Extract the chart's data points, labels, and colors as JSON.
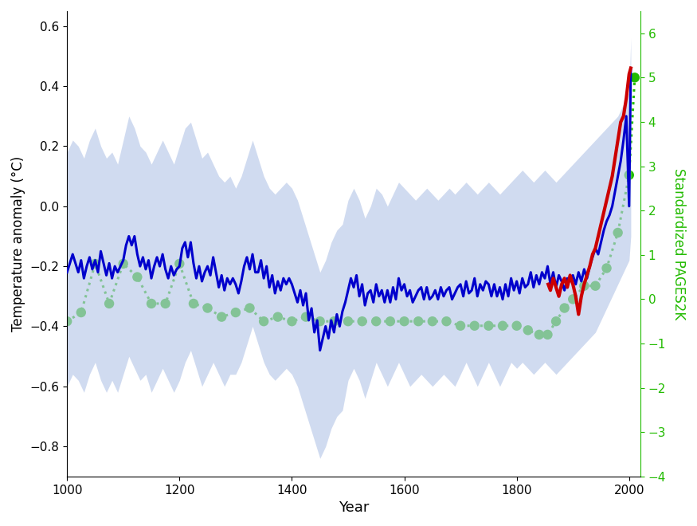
{
  "xlabel": "Year",
  "ylabel_left": "Temperature anomaly (°C)",
  "ylabel_right": "Standardized PAGES2K",
  "xlim": [
    1000,
    2020
  ],
  "ylim_left": [
    -0.9,
    0.65
  ],
  "ylim_right": [
    -4.0,
    6.5
  ],
  "yticks_left": [
    -0.8,
    -0.6,
    -0.4,
    -0.2,
    0.0,
    0.2,
    0.4,
    0.6
  ],
  "yticks_right": [
    -4,
    -3,
    -2,
    -1,
    0,
    1,
    2,
    3,
    4,
    5,
    6
  ],
  "xticks": [
    1000,
    1200,
    1400,
    1600,
    1800,
    2000
  ],
  "blue_color": "#0000cc",
  "red_color": "#cc0000",
  "green_color": "#22bb00",
  "shade_color": "#b8c8e8",
  "shade_alpha": 0.65,
  "right_axis_color": "#22bb00",
  "blue_line_x": [
    1000,
    1005,
    1010,
    1015,
    1020,
    1025,
    1030,
    1035,
    1040,
    1045,
    1050,
    1055,
    1060,
    1065,
    1070,
    1075,
    1080,
    1085,
    1090,
    1095,
    1100,
    1105,
    1110,
    1115,
    1120,
    1125,
    1130,
    1135,
    1140,
    1145,
    1150,
    1155,
    1160,
    1165,
    1170,
    1175,
    1180,
    1185,
    1190,
    1195,
    1200,
    1205,
    1210,
    1215,
    1220,
    1225,
    1230,
    1235,
    1240,
    1245,
    1250,
    1255,
    1260,
    1265,
    1270,
    1275,
    1280,
    1285,
    1290,
    1295,
    1300,
    1305,
    1310,
    1315,
    1320,
    1325,
    1330,
    1335,
    1340,
    1345,
    1350,
    1355,
    1360,
    1365,
    1370,
    1375,
    1380,
    1385,
    1390,
    1395,
    1400,
    1405,
    1410,
    1415,
    1420,
    1425,
    1430,
    1435,
    1440,
    1445,
    1450,
    1455,
    1460,
    1465,
    1470,
    1475,
    1480,
    1485,
    1490,
    1495,
    1500,
    1505,
    1510,
    1515,
    1520,
    1525,
    1530,
    1535,
    1540,
    1545,
    1550,
    1555,
    1560,
    1565,
    1570,
    1575,
    1580,
    1585,
    1590,
    1595,
    1600,
    1605,
    1610,
    1615,
    1620,
    1625,
    1630,
    1635,
    1640,
    1645,
    1650,
    1655,
    1660,
    1665,
    1670,
    1675,
    1680,
    1685,
    1690,
    1695,
    1700,
    1705,
    1710,
    1715,
    1720,
    1725,
    1730,
    1735,
    1740,
    1745,
    1750,
    1755,
    1760,
    1765,
    1770,
    1775,
    1780,
    1785,
    1790,
    1795,
    1800,
    1805,
    1810,
    1815,
    1820,
    1825,
    1830,
    1835,
    1840,
    1845,
    1850,
    1855,
    1860,
    1865,
    1870,
    1875,
    1880,
    1885,
    1890,
    1895,
    1900,
    1905,
    1910,
    1915,
    1920,
    1925,
    1930,
    1935,
    1940,
    1945,
    1950,
    1955,
    1960,
    1965,
    1970,
    1975,
    1980,
    1985,
    1990,
    1995,
    2000,
    2003
  ],
  "blue_line_y": [
    -0.22,
    -0.19,
    -0.16,
    -0.19,
    -0.22,
    -0.18,
    -0.24,
    -0.2,
    -0.17,
    -0.21,
    -0.18,
    -0.22,
    -0.15,
    -0.19,
    -0.23,
    -0.19,
    -0.24,
    -0.2,
    -0.22,
    -0.2,
    -0.18,
    -0.13,
    -0.1,
    -0.13,
    -0.1,
    -0.16,
    -0.2,
    -0.17,
    -0.21,
    -0.18,
    -0.24,
    -0.2,
    -0.17,
    -0.2,
    -0.16,
    -0.21,
    -0.24,
    -0.2,
    -0.23,
    -0.21,
    -0.2,
    -0.14,
    -0.12,
    -0.17,
    -0.12,
    -0.19,
    -0.24,
    -0.2,
    -0.25,
    -0.22,
    -0.2,
    -0.23,
    -0.17,
    -0.22,
    -0.27,
    -0.23,
    -0.28,
    -0.24,
    -0.26,
    -0.24,
    -0.26,
    -0.29,
    -0.25,
    -0.2,
    -0.17,
    -0.21,
    -0.16,
    -0.22,
    -0.22,
    -0.18,
    -0.24,
    -0.2,
    -0.27,
    -0.23,
    -0.29,
    -0.25,
    -0.28,
    -0.24,
    -0.26,
    -0.24,
    -0.26,
    -0.29,
    -0.32,
    -0.28,
    -0.33,
    -0.29,
    -0.38,
    -0.34,
    -0.42,
    -0.38,
    -0.48,
    -0.44,
    -0.4,
    -0.44,
    -0.38,
    -0.42,
    -0.36,
    -0.4,
    -0.35,
    -0.32,
    -0.28,
    -0.24,
    -0.27,
    -0.23,
    -0.3,
    -0.26,
    -0.33,
    -0.29,
    -0.28,
    -0.32,
    -0.26,
    -0.3,
    -0.28,
    -0.32,
    -0.28,
    -0.32,
    -0.27,
    -0.31,
    -0.24,
    -0.28,
    -0.26,
    -0.3,
    -0.28,
    -0.32,
    -0.3,
    -0.28,
    -0.27,
    -0.31,
    -0.27,
    -0.31,
    -0.3,
    -0.28,
    -0.31,
    -0.27,
    -0.3,
    -0.28,
    -0.27,
    -0.31,
    -0.29,
    -0.27,
    -0.26,
    -0.3,
    -0.25,
    -0.29,
    -0.28,
    -0.24,
    -0.3,
    -0.26,
    -0.28,
    -0.25,
    -0.26,
    -0.3,
    -0.26,
    -0.3,
    -0.27,
    -0.31,
    -0.26,
    -0.3,
    -0.24,
    -0.28,
    -0.25,
    -0.29,
    -0.24,
    -0.27,
    -0.26,
    -0.22,
    -0.27,
    -0.23,
    -0.26,
    -0.22,
    -0.24,
    -0.2,
    -0.26,
    -0.22,
    -0.27,
    -0.23,
    -0.25,
    -0.28,
    -0.24,
    -0.25,
    -0.23,
    -0.26,
    -0.22,
    -0.25,
    -0.21,
    -0.24,
    -0.2,
    -0.17,
    -0.14,
    -0.16,
    -0.12,
    -0.08,
    -0.05,
    -0.03,
    0.0,
    0.05,
    0.1,
    0.15,
    0.22,
    0.3,
    0.0,
    0.46
  ],
  "shade_x": [
    1000,
    1010,
    1020,
    1030,
    1040,
    1050,
    1060,
    1070,
    1080,
    1090,
    1100,
    1110,
    1120,
    1130,
    1140,
    1150,
    1160,
    1170,
    1180,
    1190,
    1200,
    1210,
    1220,
    1230,
    1240,
    1250,
    1260,
    1270,
    1280,
    1290,
    1300,
    1310,
    1320,
    1330,
    1340,
    1350,
    1360,
    1370,
    1380,
    1390,
    1400,
    1410,
    1420,
    1430,
    1440,
    1450,
    1460,
    1470,
    1480,
    1490,
    1500,
    1510,
    1520,
    1530,
    1540,
    1550,
    1560,
    1570,
    1580,
    1590,
    1600,
    1610,
    1620,
    1630,
    1640,
    1650,
    1660,
    1670,
    1680,
    1690,
    1700,
    1710,
    1720,
    1730,
    1740,
    1750,
    1760,
    1770,
    1780,
    1790,
    1800,
    1810,
    1820,
    1830,
    1840,
    1850,
    1860,
    1870,
    1880,
    1890,
    1900,
    1910,
    1920,
    1930,
    1940,
    1950,
    1960,
    1970,
    1980,
    1990,
    2000,
    2003
  ],
  "shade_upper": [
    0.18,
    0.22,
    0.2,
    0.16,
    0.22,
    0.26,
    0.2,
    0.16,
    0.18,
    0.14,
    0.22,
    0.3,
    0.26,
    0.2,
    0.18,
    0.14,
    0.18,
    0.22,
    0.18,
    0.14,
    0.2,
    0.26,
    0.28,
    0.22,
    0.16,
    0.18,
    0.14,
    0.1,
    0.08,
    0.1,
    0.06,
    0.1,
    0.16,
    0.22,
    0.16,
    0.1,
    0.06,
    0.04,
    0.06,
    0.08,
    0.06,
    0.02,
    -0.04,
    -0.1,
    -0.16,
    -0.22,
    -0.18,
    -0.12,
    -0.08,
    -0.06,
    0.02,
    0.06,
    0.02,
    -0.04,
    0.0,
    0.06,
    0.04,
    0.0,
    0.04,
    0.08,
    0.06,
    0.04,
    0.02,
    0.04,
    0.06,
    0.04,
    0.02,
    0.04,
    0.06,
    0.04,
    0.06,
    0.08,
    0.06,
    0.04,
    0.06,
    0.08,
    0.06,
    0.04,
    0.06,
    0.08,
    0.1,
    0.12,
    0.1,
    0.08,
    0.1,
    0.12,
    0.1,
    0.08,
    0.1,
    0.12,
    0.14,
    0.16,
    0.18,
    0.2,
    0.22,
    0.24,
    0.26,
    0.28,
    0.3,
    0.34,
    0.38,
    0.56
  ],
  "shade_lower": [
    -0.6,
    -0.56,
    -0.58,
    -0.62,
    -0.56,
    -0.52,
    -0.58,
    -0.62,
    -0.58,
    -0.62,
    -0.56,
    -0.5,
    -0.54,
    -0.58,
    -0.56,
    -0.62,
    -0.58,
    -0.54,
    -0.58,
    -0.62,
    -0.58,
    -0.52,
    -0.48,
    -0.54,
    -0.6,
    -0.56,
    -0.52,
    -0.56,
    -0.6,
    -0.56,
    -0.56,
    -0.52,
    -0.46,
    -0.4,
    -0.46,
    -0.52,
    -0.56,
    -0.58,
    -0.56,
    -0.54,
    -0.56,
    -0.6,
    -0.66,
    -0.72,
    -0.78,
    -0.84,
    -0.8,
    -0.74,
    -0.7,
    -0.68,
    -0.58,
    -0.54,
    -0.58,
    -0.64,
    -0.58,
    -0.52,
    -0.56,
    -0.6,
    -0.56,
    -0.52,
    -0.56,
    -0.6,
    -0.58,
    -0.56,
    -0.58,
    -0.6,
    -0.58,
    -0.56,
    -0.58,
    -0.6,
    -0.56,
    -0.52,
    -0.56,
    -0.6,
    -0.56,
    -0.52,
    -0.56,
    -0.6,
    -0.56,
    -0.52,
    -0.54,
    -0.52,
    -0.54,
    -0.56,
    -0.54,
    -0.52,
    -0.54,
    -0.56,
    -0.54,
    -0.52,
    -0.5,
    -0.48,
    -0.46,
    -0.44,
    -0.42,
    -0.38,
    -0.34,
    -0.3,
    -0.26,
    -0.22,
    -0.18,
    -0.1
  ],
  "red_line_x": [
    1856,
    1860,
    1865,
    1870,
    1875,
    1880,
    1885,
    1890,
    1895,
    1900,
    1905,
    1910,
    1915,
    1920,
    1925,
    1930,
    1935,
    1940,
    1945,
    1950,
    1955,
    1960,
    1965,
    1970,
    1975,
    1980,
    1985,
    1990,
    1995,
    2000,
    2003
  ],
  "red_line_y": [
    -0.26,
    -0.28,
    -0.24,
    -0.27,
    -0.3,
    -0.26,
    -0.24,
    -0.27,
    -0.23,
    -0.26,
    -0.3,
    -0.36,
    -0.3,
    -0.26,
    -0.23,
    -0.2,
    -0.16,
    -0.14,
    -0.1,
    -0.06,
    -0.02,
    0.02,
    0.06,
    0.1,
    0.16,
    0.22,
    0.28,
    0.3,
    0.36,
    0.44,
    0.46
  ],
  "green_x": [
    1000,
    1025,
    1050,
    1075,
    1100,
    1125,
    1150,
    1175,
    1200,
    1225,
    1250,
    1275,
    1300,
    1325,
    1350,
    1375,
    1400,
    1425,
    1450,
    1475,
    1500,
    1525,
    1550,
    1575,
    1600,
    1625,
    1650,
    1675,
    1700,
    1725,
    1750,
    1775,
    1800,
    1820,
    1840,
    1855,
    1870,
    1885,
    1900,
    1920,
    1940,
    1960,
    1980,
    2000,
    2010
  ],
  "green_y": [
    -0.5,
    -0.3,
    0.8,
    -0.1,
    0.8,
    0.5,
    -0.1,
    -0.1,
    0.8,
    -0.1,
    -0.2,
    -0.4,
    -0.3,
    -0.2,
    -0.5,
    -0.4,
    -0.5,
    -0.4,
    -0.5,
    -0.5,
    -0.5,
    -0.5,
    -0.5,
    -0.5,
    -0.5,
    -0.5,
    -0.5,
    -0.5,
    -0.6,
    -0.6,
    -0.6,
    -0.6,
    -0.6,
    -0.7,
    -0.8,
    -0.8,
    -0.5,
    -0.2,
    0.0,
    0.3,
    0.3,
    0.7,
    1.5,
    2.8,
    5.0
  ]
}
